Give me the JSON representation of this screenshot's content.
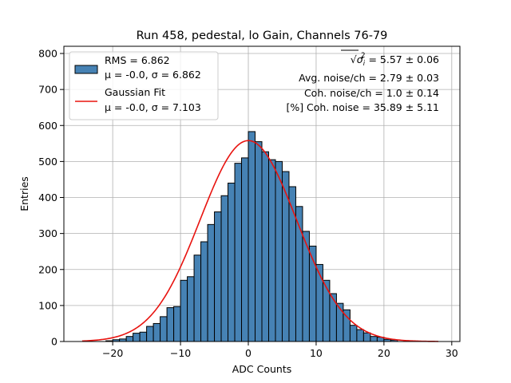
{
  "chart_data": {
    "type": "bar",
    "title": "Run 458, pedestal, lo Gain, Channels 76-79",
    "xlabel": "ADC Counts",
    "ylabel": "Entries",
    "xlim": [
      -27.2,
      31.2
    ],
    "ylim": [
      0,
      820
    ],
    "xticks": [
      -20,
      -10,
      0,
      10,
      20,
      30
    ],
    "yticks": [
      0,
      100,
      200,
      300,
      400,
      500,
      600,
      700,
      800
    ],
    "grid": true,
    "legend_placement": "top-left",
    "bin_edges": [
      -21,
      -20,
      -19,
      -18,
      -17,
      -16,
      -15,
      -14,
      -13,
      -12,
      -11,
      -10,
      -9,
      -8,
      -7,
      -6,
      -5,
      -4,
      -3,
      -2,
      -1,
      0,
      1,
      2,
      3,
      4,
      5,
      6,
      7,
      8,
      9,
      10,
      11,
      12,
      13,
      14,
      15,
      16,
      17,
      18,
      19,
      20,
      21,
      22
    ],
    "counts": [
      2,
      5,
      7,
      14,
      23,
      26,
      42,
      50,
      69,
      94,
      97,
      170,
      180,
      240,
      277,
      325,
      360,
      405,
      440,
      495,
      510,
      583,
      555,
      527,
      505,
      500,
      472,
      430,
      375,
      306,
      265,
      214,
      170,
      133,
      106,
      88,
      45,
      33,
      24,
      14,
      12,
      6,
      4
    ],
    "series": [
      {
        "name_lines": [
          "RMS = 6.862",
          "μ = -0.0, σ = 6.862"
        ],
        "kind": "histogram",
        "color": "#4682b4"
      },
      {
        "name_lines": [
          "Gaussian Fit",
          "μ = -0.0, σ = 7.103"
        ],
        "kind": "curve",
        "color": "#e8130f",
        "fit": {
          "mu": 0.0,
          "sigma": 7.103,
          "amplitude": 558,
          "x_range": [
            -24.5,
            28.0
          ]
        }
      }
    ],
    "annotations": [
      {
        "prefix": "√",
        "base": "σ",
        "sub": "i",
        "sup": "2",
        "suffix": " = 5.57 ± 0.06"
      },
      {
        "text": "Avg. noise/ch = 2.79 ± 0.03"
      },
      {
        "text": "Coh. noise/ch = 1.0 ± 0.14"
      },
      {
        "text": "[%] Coh. noise = 35.89 ± 5.11"
      }
    ]
  }
}
